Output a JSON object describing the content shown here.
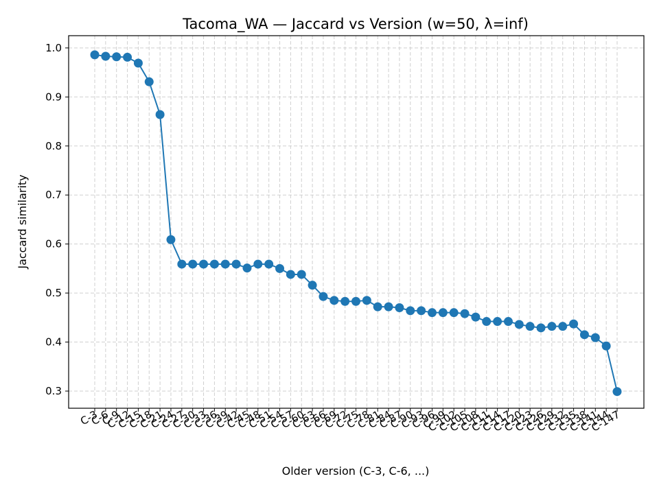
{
  "chart_data": {
    "type": "line",
    "title": "Tacoma_WA — Jaccard vs Version (w=50, λ=inf)",
    "xlabel": "Older version (C-3, C-6, ...)",
    "ylabel": "Jaccard similarity",
    "ylim": [
      0.265,
      1.025
    ],
    "yticks": [
      0.3,
      0.4,
      0.5,
      0.6,
      0.7,
      0.8,
      0.9,
      1.0
    ],
    "yticklabels": [
      "0.3",
      "0.4",
      "0.5",
      "0.6",
      "0.7",
      "0.8",
      "0.9",
      "1.0"
    ],
    "grid": true,
    "series_color": "#1f77b4",
    "categories": [
      "C-3",
      "C-6",
      "C-9",
      "C-12",
      "C-15",
      "C-18",
      "C-21",
      "C-24",
      "C-27",
      "C-30",
      "C-33",
      "C-36",
      "C-39",
      "C-42",
      "C-45",
      "C-48",
      "C-51",
      "C-54",
      "C-57",
      "C-60",
      "C-63",
      "C-66",
      "C-69",
      "C-72",
      "C-75",
      "C-78",
      "C-81",
      "C-84",
      "C-87",
      "C-90",
      "C-93",
      "C-96",
      "C-99",
      "C-102",
      "C-105",
      "C-108",
      "C-111",
      "C-114",
      "C-117",
      "C-120",
      "C-123",
      "C-126",
      "C-129",
      "C-132",
      "C-135",
      "C-138",
      "C-141",
      "C-144",
      "C-147"
    ],
    "values": [
      0.986,
      0.983,
      0.982,
      0.981,
      0.969,
      0.931,
      0.864,
      0.609,
      0.559,
      0.559,
      0.559,
      0.559,
      0.559,
      0.559,
      0.551,
      0.559,
      0.559,
      0.55,
      0.538,
      0.538,
      0.516,
      0.493,
      0.485,
      0.483,
      0.483,
      0.485,
      0.472,
      0.472,
      0.47,
      0.464,
      0.464,
      0.46,
      0.46,
      0.46,
      0.458,
      0.451,
      0.442,
      0.442,
      0.442,
      0.436,
      0.432,
      0.429,
      0.432,
      0.432,
      0.437,
      0.415,
      0.409,
      0.392,
      0.299
    ]
  }
}
